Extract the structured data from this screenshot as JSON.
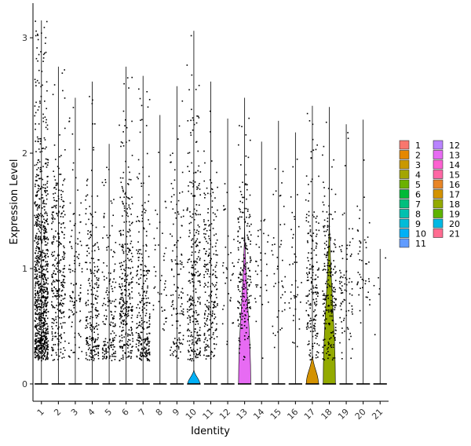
{
  "chart_data": {
    "type": "violin",
    "xlabel": "Identity",
    "ylabel": "Expression Level",
    "ylim": [
      -0.15,
      3.3
    ],
    "yticks": [
      0,
      1,
      2,
      3
    ],
    "categories": [
      "1",
      "2",
      "3",
      "4",
      "5",
      "6",
      "7",
      "8",
      "9",
      "10",
      "11",
      "12",
      "13",
      "14",
      "15",
      "16",
      "17",
      "18",
      "19",
      "20",
      "21"
    ],
    "colors": [
      "#F8766D",
      "#E58700",
      "#C99800",
      "#A3A500",
      "#6BB100",
      "#00BA38",
      "#00BF7D",
      "#00C0AF",
      "#00BCD8",
      "#00B0F6",
      "#619CFF",
      "#B983FF",
      "#E76BF3",
      "#FD61D1",
      "#FF67A4",
      "#E88526",
      "#D39200",
      "#93AA00",
      "#5EB300",
      "#00B9E3",
      "#FF6C91"
    ],
    "max_expression": [
      3.15,
      2.75,
      2.48,
      2.62,
      2.08,
      2.75,
      2.67,
      2.33,
      2.58,
      3.06,
      2.62,
      2.3,
      2.48,
      2.1,
      2.28,
      2.18,
      2.41,
      2.4,
      2.25,
      2.29,
      1.17
    ],
    "violin_peak_width": [
      0,
      0,
      0,
      0,
      0,
      0,
      0,
      0,
      0,
      0.36,
      0,
      0,
      0.36,
      0,
      0,
      0,
      0.36,
      0.36,
      0,
      0,
      0
    ],
    "violin_height": [
      0,
      0,
      0,
      0,
      0,
      0,
      0,
      0,
      0,
      0.12,
      0,
      0,
      1.35,
      0,
      0,
      0,
      0.25,
      1.45,
      0,
      0,
      0
    ],
    "point_counts": [
      900,
      320,
      110,
      230,
      160,
      330,
      270,
      45,
      130,
      290,
      230,
      35,
      220,
      35,
      45,
      40,
      190,
      220,
      85,
      45,
      6
    ],
    "point_centers": [
      0.75,
      0.9,
      0.8,
      0.6,
      0.5,
      0.8,
      0.55,
      0.9,
      0.7,
      0.8,
      0.8,
      1.0,
      0.9,
      0.9,
      0.9,
      0.9,
      0.8,
      0.8,
      0.8,
      1.0,
      0.6
    ],
    "legend": {
      "col1": [
        "1",
        "2",
        "3",
        "4",
        "5",
        "6",
        "7",
        "8",
        "9",
        "10",
        "11"
      ],
      "col2": [
        "12",
        "13",
        "14",
        "15",
        "16",
        "17",
        "18",
        "19",
        "20",
        "21"
      ]
    }
  }
}
